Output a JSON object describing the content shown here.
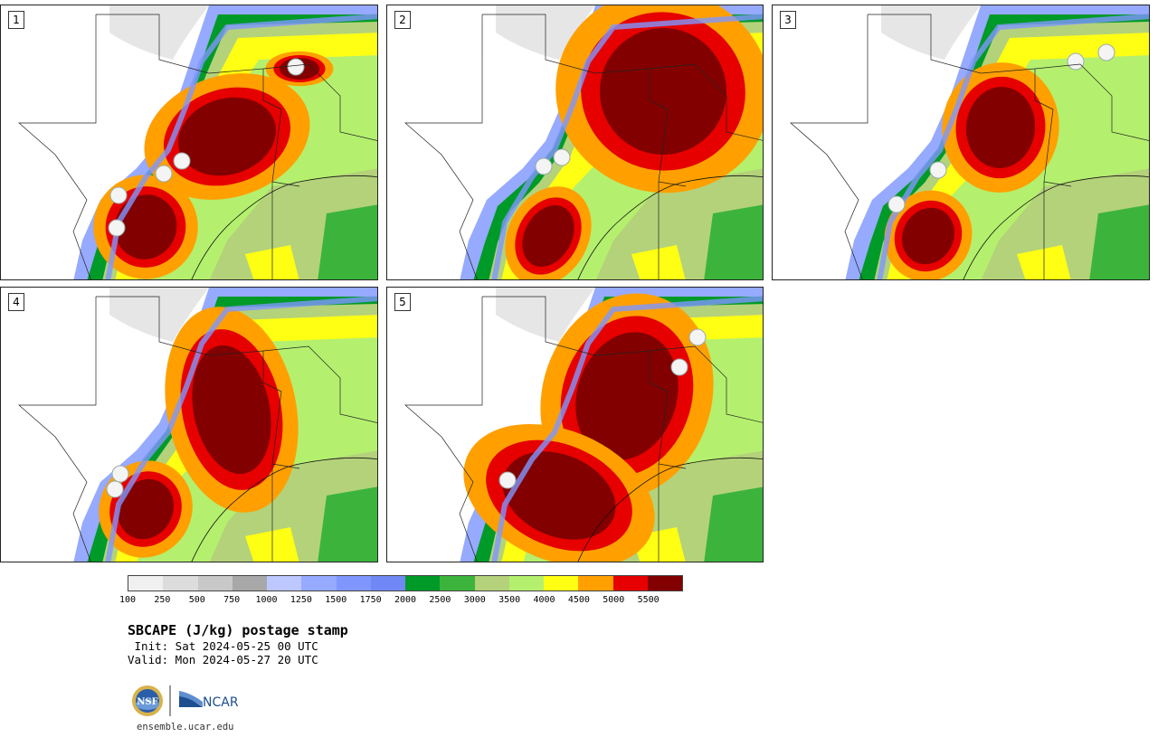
{
  "panels": [
    {
      "label": "1",
      "core": [
        [
          250,
          145,
          55,
          42,
          -0.3
        ],
        [
          160,
          245,
          34,
          36,
          0.4
        ],
        [
          330,
          70,
          22,
          12,
          0
        ]
      ],
      "stormsW": [
        [
          128,
          246
        ],
        [
          130,
          210
        ],
        [
          180,
          186
        ],
        [
          200,
          172
        ]
      ],
      "storms": [
        [
          326,
          68
        ]
      ]
    },
    {
      "label": "2",
      "core": [
        [
          305,
          95,
          70,
          70,
          0.2
        ],
        [
          178,
          255,
          26,
          36,
          0.5
        ]
      ],
      "stormsW": [
        [
          600,
          178
        ],
        [
          620,
          168
        ]
      ],
      "storms": []
    },
    {
      "label": "3",
      "core": [
        [
          252,
          135,
          38,
          45,
          0.1
        ],
        [
          172,
          255,
          28,
          32,
          0.5
        ]
      ],
      "stormsW": [
        [
          1036,
          182
        ],
        [
          990,
          220
        ]
      ],
      "storms": [
        [
          1188,
          62
        ],
        [
          1222,
          52
        ]
      ]
    },
    {
      "label": "4",
      "core": [
        [
          255,
          135,
          42,
          72,
          -0.2
        ],
        [
          160,
          245,
          30,
          34,
          0.5
        ]
      ],
      "stormsW": [
        [
          132,
          523
        ],
        [
          126,
          540
        ]
      ],
      "storms": []
    },
    {
      "label": "5",
      "core": [
        [
          265,
          120,
          55,
          72,
          0.3
        ],
        [
          190,
          230,
          65,
          45,
          0.4
        ]
      ],
      "stormsW": [
        [
          560,
          530
        ]
      ],
      "storms": [
        [
          770,
          372
        ],
        [
          750,
          405
        ]
      ]
    }
  ],
  "colorbar": {
    "colors": [
      "#f0f0f0",
      "#dcdcdc",
      "#c8c8c8",
      "#a8a8a8",
      "#bcc8ff",
      "#96aaff",
      "#8096ff",
      "#7088f5",
      "#009a28",
      "#3cb43c",
      "#b4d27a",
      "#b4f06e",
      "#ffff14",
      "#ffa000",
      "#e60000",
      "#820000"
    ],
    "ticks": [
      "100",
      "250",
      "500",
      "750",
      "1000",
      "1250",
      "1500",
      "1750",
      "2000",
      "2500",
      "3000",
      "3500",
      "4000",
      "4500",
      "5000",
      "5500"
    ]
  },
  "title": "SBCAPE (J/kg) postage stamp",
  "init": " Init: Sat 2024-05-25 00 UTC",
  "valid": "Valid: Mon 2024-05-27 20 UTC",
  "footer": {
    "nsf_text": "NSF",
    "ncar_text": "NCAR",
    "url": "ensemble.ucar.edu"
  }
}
